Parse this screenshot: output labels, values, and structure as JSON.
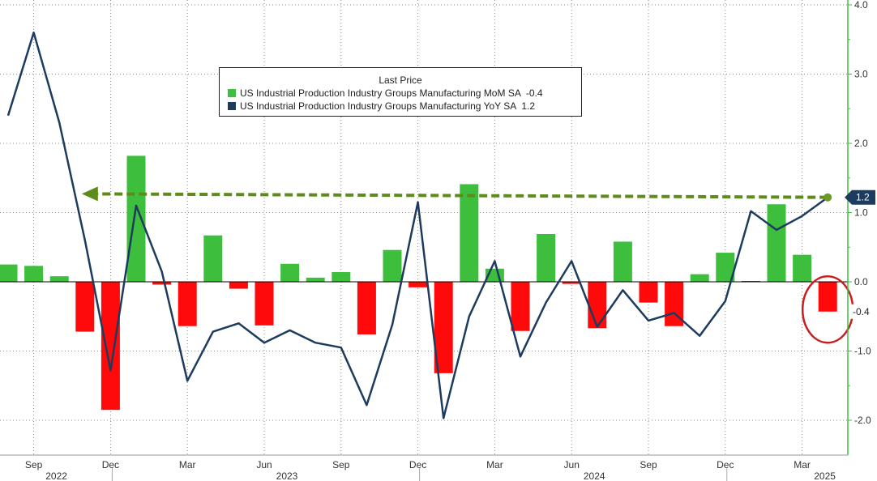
{
  "chart_data": {
    "type": "bar",
    "title": "",
    "legend": {
      "title": "Last Price",
      "placement": "top-center",
      "entries": [
        {
          "label": "US Industrial Production Industry Groups Manufacturing MoM SA",
          "value": "-0.4",
          "color": "#3dbf3d"
        },
        {
          "label": "US Industrial Production Industry Groups Manufacturing YoY SA",
          "value": "1.2",
          "color": "#1d3b5e"
        }
      ]
    },
    "x": [
      "2022-08",
      "2022-09",
      "2022-10",
      "2022-11",
      "2022-12",
      "2023-01",
      "2023-02",
      "2023-03",
      "2023-04",
      "2023-05",
      "2023-06",
      "2023-07",
      "2023-08",
      "2023-09",
      "2023-10",
      "2023-11",
      "2023-12",
      "2024-01",
      "2024-02",
      "2024-03",
      "2024-04",
      "2024-05",
      "2024-06",
      "2024-07",
      "2024-08",
      "2024-09",
      "2024-10",
      "2024-11",
      "2024-12",
      "2025-01",
      "2025-02",
      "2025-03",
      "2025-04"
    ],
    "series": [
      {
        "name": "US Industrial Production Industry Groups Manufacturing MoM SA",
        "type": "bar",
        "values": [
          0.25,
          0.23,
          0.08,
          -0.72,
          -1.85,
          1.82,
          -0.04,
          -0.64,
          0.67,
          -0.1,
          -0.63,
          0.26,
          0.06,
          0.14,
          -0.76,
          0.46,
          -0.08,
          -1.32,
          1.41,
          0.19,
          -0.71,
          0.69,
          -0.03,
          -0.67,
          0.58,
          -0.3,
          -0.64,
          0.11,
          0.42,
          0.0,
          1.12,
          0.39,
          -0.43
        ]
      },
      {
        "name": "US Industrial Production Industry Groups Manufacturing YoY SA",
        "type": "line",
        "values": [
          2.4,
          3.6,
          2.3,
          0.6,
          -1.28,
          1.1,
          0.15,
          -1.43,
          -0.72,
          -0.6,
          -0.88,
          -0.7,
          -0.88,
          -0.95,
          -1.78,
          -0.62,
          1.15,
          -1.97,
          -0.5,
          0.3,
          -1.08,
          -0.3,
          0.3,
          -0.65,
          -0.12,
          -0.56,
          -0.45,
          -0.78,
          -0.28,
          1.02,
          0.75,
          0.95,
          1.22
        ]
      }
    ],
    "y_axis": {
      "side": "right",
      "ylim": [
        -2.4,
        4.0
      ],
      "ticks": [
        "4.0",
        "3.0",
        "2.0",
        "1.0",
        "0.0",
        "-1.0",
        "-2.0"
      ]
    },
    "x_axis": {
      "month_labels": [
        {
          "at": "2022-09",
          "label": "Sep"
        },
        {
          "at": "2022-12",
          "label": "Dec"
        },
        {
          "at": "2023-03",
          "label": "Mar"
        },
        {
          "at": "2023-06",
          "label": "Jun"
        },
        {
          "at": "2023-09",
          "label": "Sep"
        },
        {
          "at": "2023-12",
          "label": "Dec"
        },
        {
          "at": "2024-03",
          "label": "Mar"
        },
        {
          "at": "2024-06",
          "label": "Jun"
        },
        {
          "at": "2024-09",
          "label": "Sep"
        },
        {
          "at": "2024-12",
          "label": "Dec"
        },
        {
          "at": "2025-03",
          "label": "Mar"
        }
      ],
      "year_labels": [
        {
          "at": "2022-09",
          "label": "2022"
        },
        {
          "at": "2023-06",
          "label": "2023"
        },
        {
          "at": "2024-06",
          "label": "2024"
        },
        {
          "at": "2025-03",
          "label": "2025"
        }
      ]
    },
    "grid": true,
    "annotations": {
      "last_value_labels": [
        {
          "series": "yoy",
          "label": "1.2",
          "value": 1.22
        },
        {
          "series": "mom",
          "label": "-0.4",
          "value": -0.43
        }
      ],
      "dashed_arrow": {
        "from": "2025-04",
        "to": "2022-11",
        "value": 1.22,
        "color": "#5e8c1c"
      },
      "highlight_circle": {
        "at": "2025-04",
        "color": "#c81e1e"
      }
    },
    "colors": {
      "positive_bar": "#3dbf3d",
      "negative_bar": "#ff0a0a",
      "line": "#1d3b5e",
      "axis": "#3dbf3d",
      "grid": "#8a8a8a"
    }
  }
}
